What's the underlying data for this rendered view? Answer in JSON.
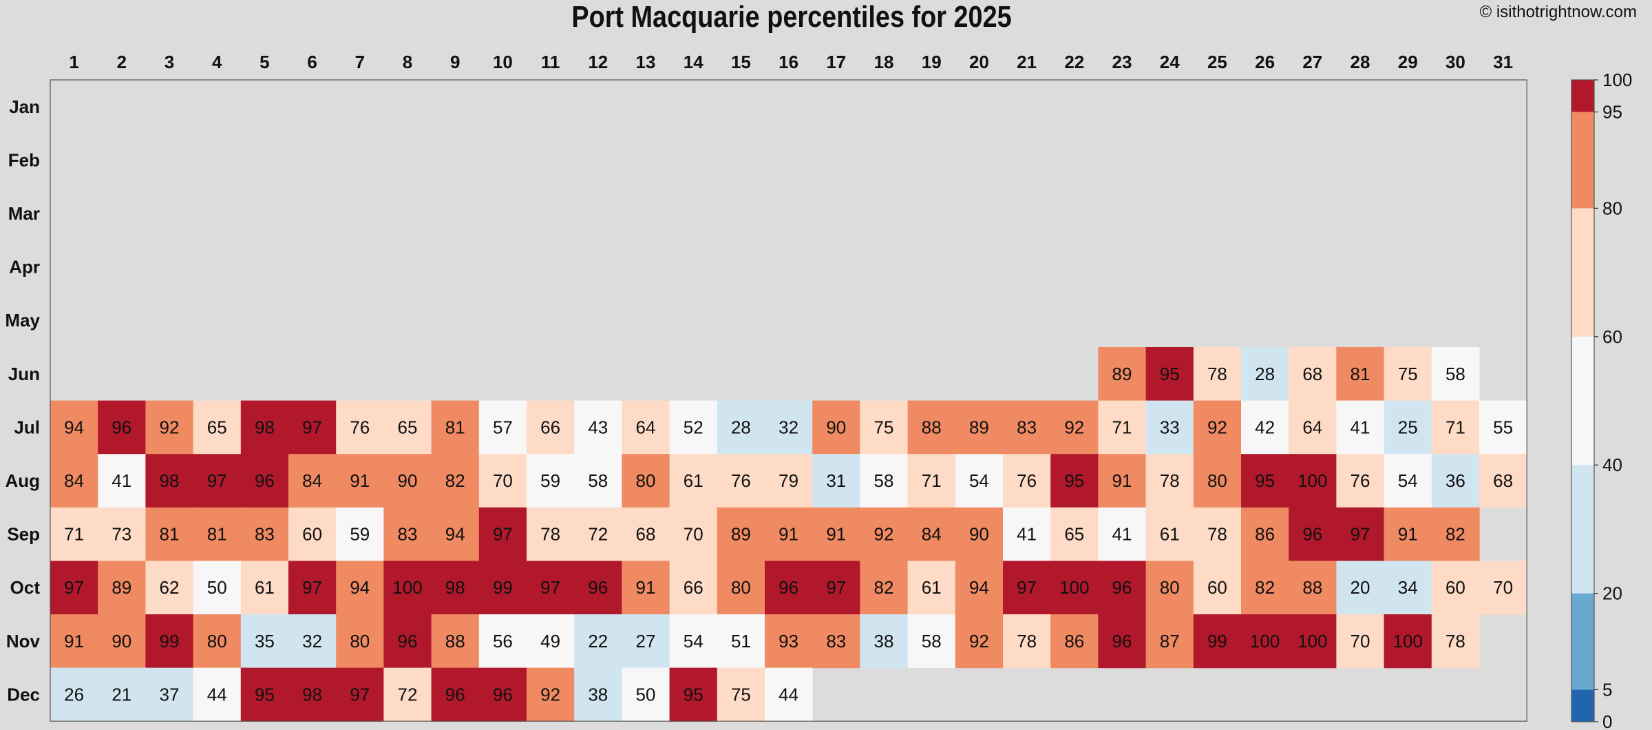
{
  "title": "Port Macquarie percentiles for 2025",
  "copyright": "© isithotrightnow.com",
  "chart_data": {
    "type": "heatmap",
    "title": "Port Macquarie percentiles for 2025",
    "x": [
      "1",
      "2",
      "3",
      "4",
      "5",
      "6",
      "7",
      "8",
      "9",
      "10",
      "11",
      "12",
      "13",
      "14",
      "15",
      "16",
      "17",
      "18",
      "19",
      "20",
      "21",
      "22",
      "23",
      "24",
      "25",
      "26",
      "27",
      "28",
      "29",
      "30",
      "31"
    ],
    "y": [
      "Jan",
      "Feb",
      "Mar",
      "Apr",
      "May",
      "Jun",
      "Jul",
      "Aug",
      "Sep",
      "Oct",
      "Nov",
      "Dec"
    ],
    "values": [
      [
        null,
        null,
        null,
        null,
        null,
        null,
        null,
        null,
        null,
        null,
        null,
        null,
        null,
        null,
        null,
        null,
        null,
        null,
        null,
        null,
        null,
        null,
        null,
        null,
        null,
        null,
        null,
        null,
        null,
        null,
        null
      ],
      [
        null,
        null,
        null,
        null,
        null,
        null,
        null,
        null,
        null,
        null,
        null,
        null,
        null,
        null,
        null,
        null,
        null,
        null,
        null,
        null,
        null,
        null,
        null,
        null,
        null,
        null,
        null,
        null,
        null,
        null,
        null
      ],
      [
        null,
        null,
        null,
        null,
        null,
        null,
        null,
        null,
        null,
        null,
        null,
        null,
        null,
        null,
        null,
        null,
        null,
        null,
        null,
        null,
        null,
        null,
        null,
        null,
        null,
        null,
        null,
        null,
        null,
        null,
        null
      ],
      [
        null,
        null,
        null,
        null,
        null,
        null,
        null,
        null,
        null,
        null,
        null,
        null,
        null,
        null,
        null,
        null,
        null,
        null,
        null,
        null,
        null,
        null,
        null,
        null,
        null,
        null,
        null,
        null,
        null,
        null,
        null
      ],
      [
        null,
        null,
        null,
        null,
        null,
        null,
        null,
        null,
        null,
        null,
        null,
        null,
        null,
        null,
        null,
        null,
        null,
        null,
        null,
        null,
        null,
        null,
        null,
        null,
        null,
        null,
        null,
        null,
        null,
        null,
        null
      ],
      [
        null,
        null,
        null,
        null,
        null,
        null,
        null,
        null,
        null,
        null,
        null,
        null,
        null,
        null,
        null,
        null,
        null,
        null,
        null,
        null,
        null,
        null,
        89,
        95,
        78,
        28,
        68,
        81,
        75,
        58,
        null
      ],
      [
        94,
        96,
        92,
        65,
        98,
        97,
        76,
        65,
        81,
        57,
        66,
        43,
        64,
        52,
        28,
        32,
        90,
        75,
        88,
        89,
        83,
        92,
        71,
        33,
        92,
        42,
        64,
        41,
        25,
        71,
        55
      ],
      [
        84,
        41,
        98,
        97,
        96,
        84,
        91,
        90,
        82,
        70,
        59,
        58,
        80,
        61,
        76,
        79,
        31,
        58,
        71,
        54,
        76,
        95,
        91,
        78,
        80,
        95,
        100,
        76,
        54,
        36,
        68
      ],
      [
        71,
        73,
        81,
        81,
        83,
        60,
        59,
        83,
        94,
        97,
        78,
        72,
        68,
        70,
        89,
        91,
        91,
        92,
        84,
        90,
        41,
        65,
        41,
        61,
        78,
        86,
        96,
        97,
        91,
        82,
        null
      ],
      [
        97,
        89,
        62,
        50,
        61,
        97,
        94,
        100,
        98,
        99,
        97,
        96,
        91,
        66,
        80,
        96,
        97,
        82,
        61,
        94,
        97,
        100,
        96,
        80,
        60,
        82,
        88,
        20,
        34,
        60,
        70
      ],
      [
        91,
        90,
        99,
        80,
        35,
        32,
        80,
        96,
        88,
        56,
        49,
        22,
        27,
        54,
        51,
        93,
        83,
        38,
        58,
        92,
        78,
        86,
        96,
        87,
        99,
        100,
        100,
        70,
        100,
        78,
        null
      ],
      [
        26,
        21,
        37,
        44,
        95,
        98,
        97,
        72,
        96,
        96,
        92,
        38,
        50,
        95,
        75,
        44,
        null,
        null,
        null,
        null,
        null,
        null,
        null,
        null,
        null,
        null,
        null,
        null,
        null,
        null,
        null
      ]
    ],
    "colorbar": {
      "bounds": [
        0,
        5,
        20,
        40,
        60,
        80,
        95,
        100
      ],
      "ticks": [
        "0",
        "5",
        "20",
        "40",
        "60",
        "80",
        "95",
        "100"
      ],
      "colors": [
        "#2166ac",
        "#67a9cf",
        "#d1e5f0",
        "#f7f7f7",
        "#fddbc7",
        "#ef8a62",
        "#b2182b"
      ]
    },
    "background": "#dcdcdc"
  }
}
